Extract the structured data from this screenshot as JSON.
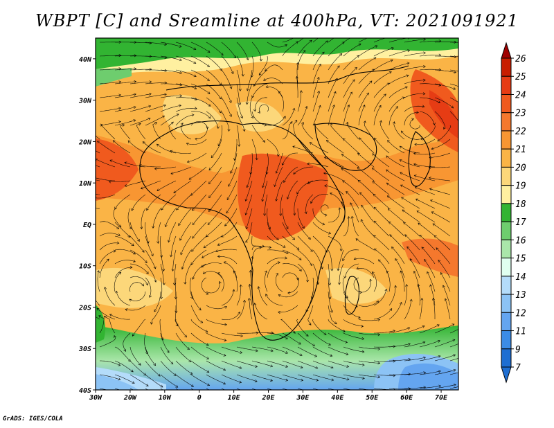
{
  "title": "WBPT [C] and Sreamline at 400hPa, VT: 2021091921",
  "credit": "GrADS: IGES/COLA",
  "map": {
    "lon_range": [
      -30,
      75
    ],
    "lat_range": [
      -40,
      45
    ],
    "lat_ticks": [
      {
        "value": 40,
        "label": "40N"
      },
      {
        "value": 30,
        "label": "30N"
      },
      {
        "value": 20,
        "label": "20N"
      },
      {
        "value": 10,
        "label": "10N"
      },
      {
        "value": 0,
        "label": "EQ"
      },
      {
        "value": -10,
        "label": "10S"
      },
      {
        "value": -20,
        "label": "20S"
      },
      {
        "value": -30,
        "label": "30S"
      },
      {
        "value": -40,
        "label": "40S"
      }
    ],
    "lon_ticks": [
      {
        "value": -30,
        "label": "30W"
      },
      {
        "value": -20,
        "label": "20W"
      },
      {
        "value": -10,
        "label": "10W"
      },
      {
        "value": 0,
        "label": "0"
      },
      {
        "value": 10,
        "label": "10E"
      },
      {
        "value": 20,
        "label": "20E"
      },
      {
        "value": 30,
        "label": "30E"
      },
      {
        "value": 40,
        "label": "40E"
      },
      {
        "value": 50,
        "label": "50E"
      },
      {
        "value": 60,
        "label": "60E"
      },
      {
        "value": 70,
        "label": "70E"
      }
    ]
  },
  "colorbar": {
    "levels": [
      {
        "label": "26",
        "color": "#a00000"
      },
      {
        "label": "25",
        "color": "#c81e00"
      },
      {
        "label": "24",
        "color": "#e63c14"
      },
      {
        "label": "23",
        "color": "#f05a1e"
      },
      {
        "label": "22",
        "color": "#f5782d"
      },
      {
        "label": "21",
        "color": "#f89632"
      },
      {
        "label": "20",
        "color": "#fab446"
      },
      {
        "label": "19",
        "color": "#fcd77a"
      },
      {
        "label": "18",
        "color": "#fff0a0"
      },
      {
        "label": "17",
        "color": "#32b432"
      },
      {
        "label": "16",
        "color": "#6ecd6e"
      },
      {
        "label": "15",
        "color": "#aae6aa"
      },
      {
        "label": "14",
        "color": "#e0fff0"
      },
      {
        "label": "13",
        "color": "#b4dcfa"
      },
      {
        "label": "12",
        "color": "#8cc3f5"
      },
      {
        "label": "11",
        "color": "#64a5f0"
      },
      {
        "label": "9",
        "color": "#3c8ce6"
      },
      {
        "label": "7",
        "color": "#1e6ed2"
      }
    ],
    "bottom_color": "#1e6ed2"
  }
}
